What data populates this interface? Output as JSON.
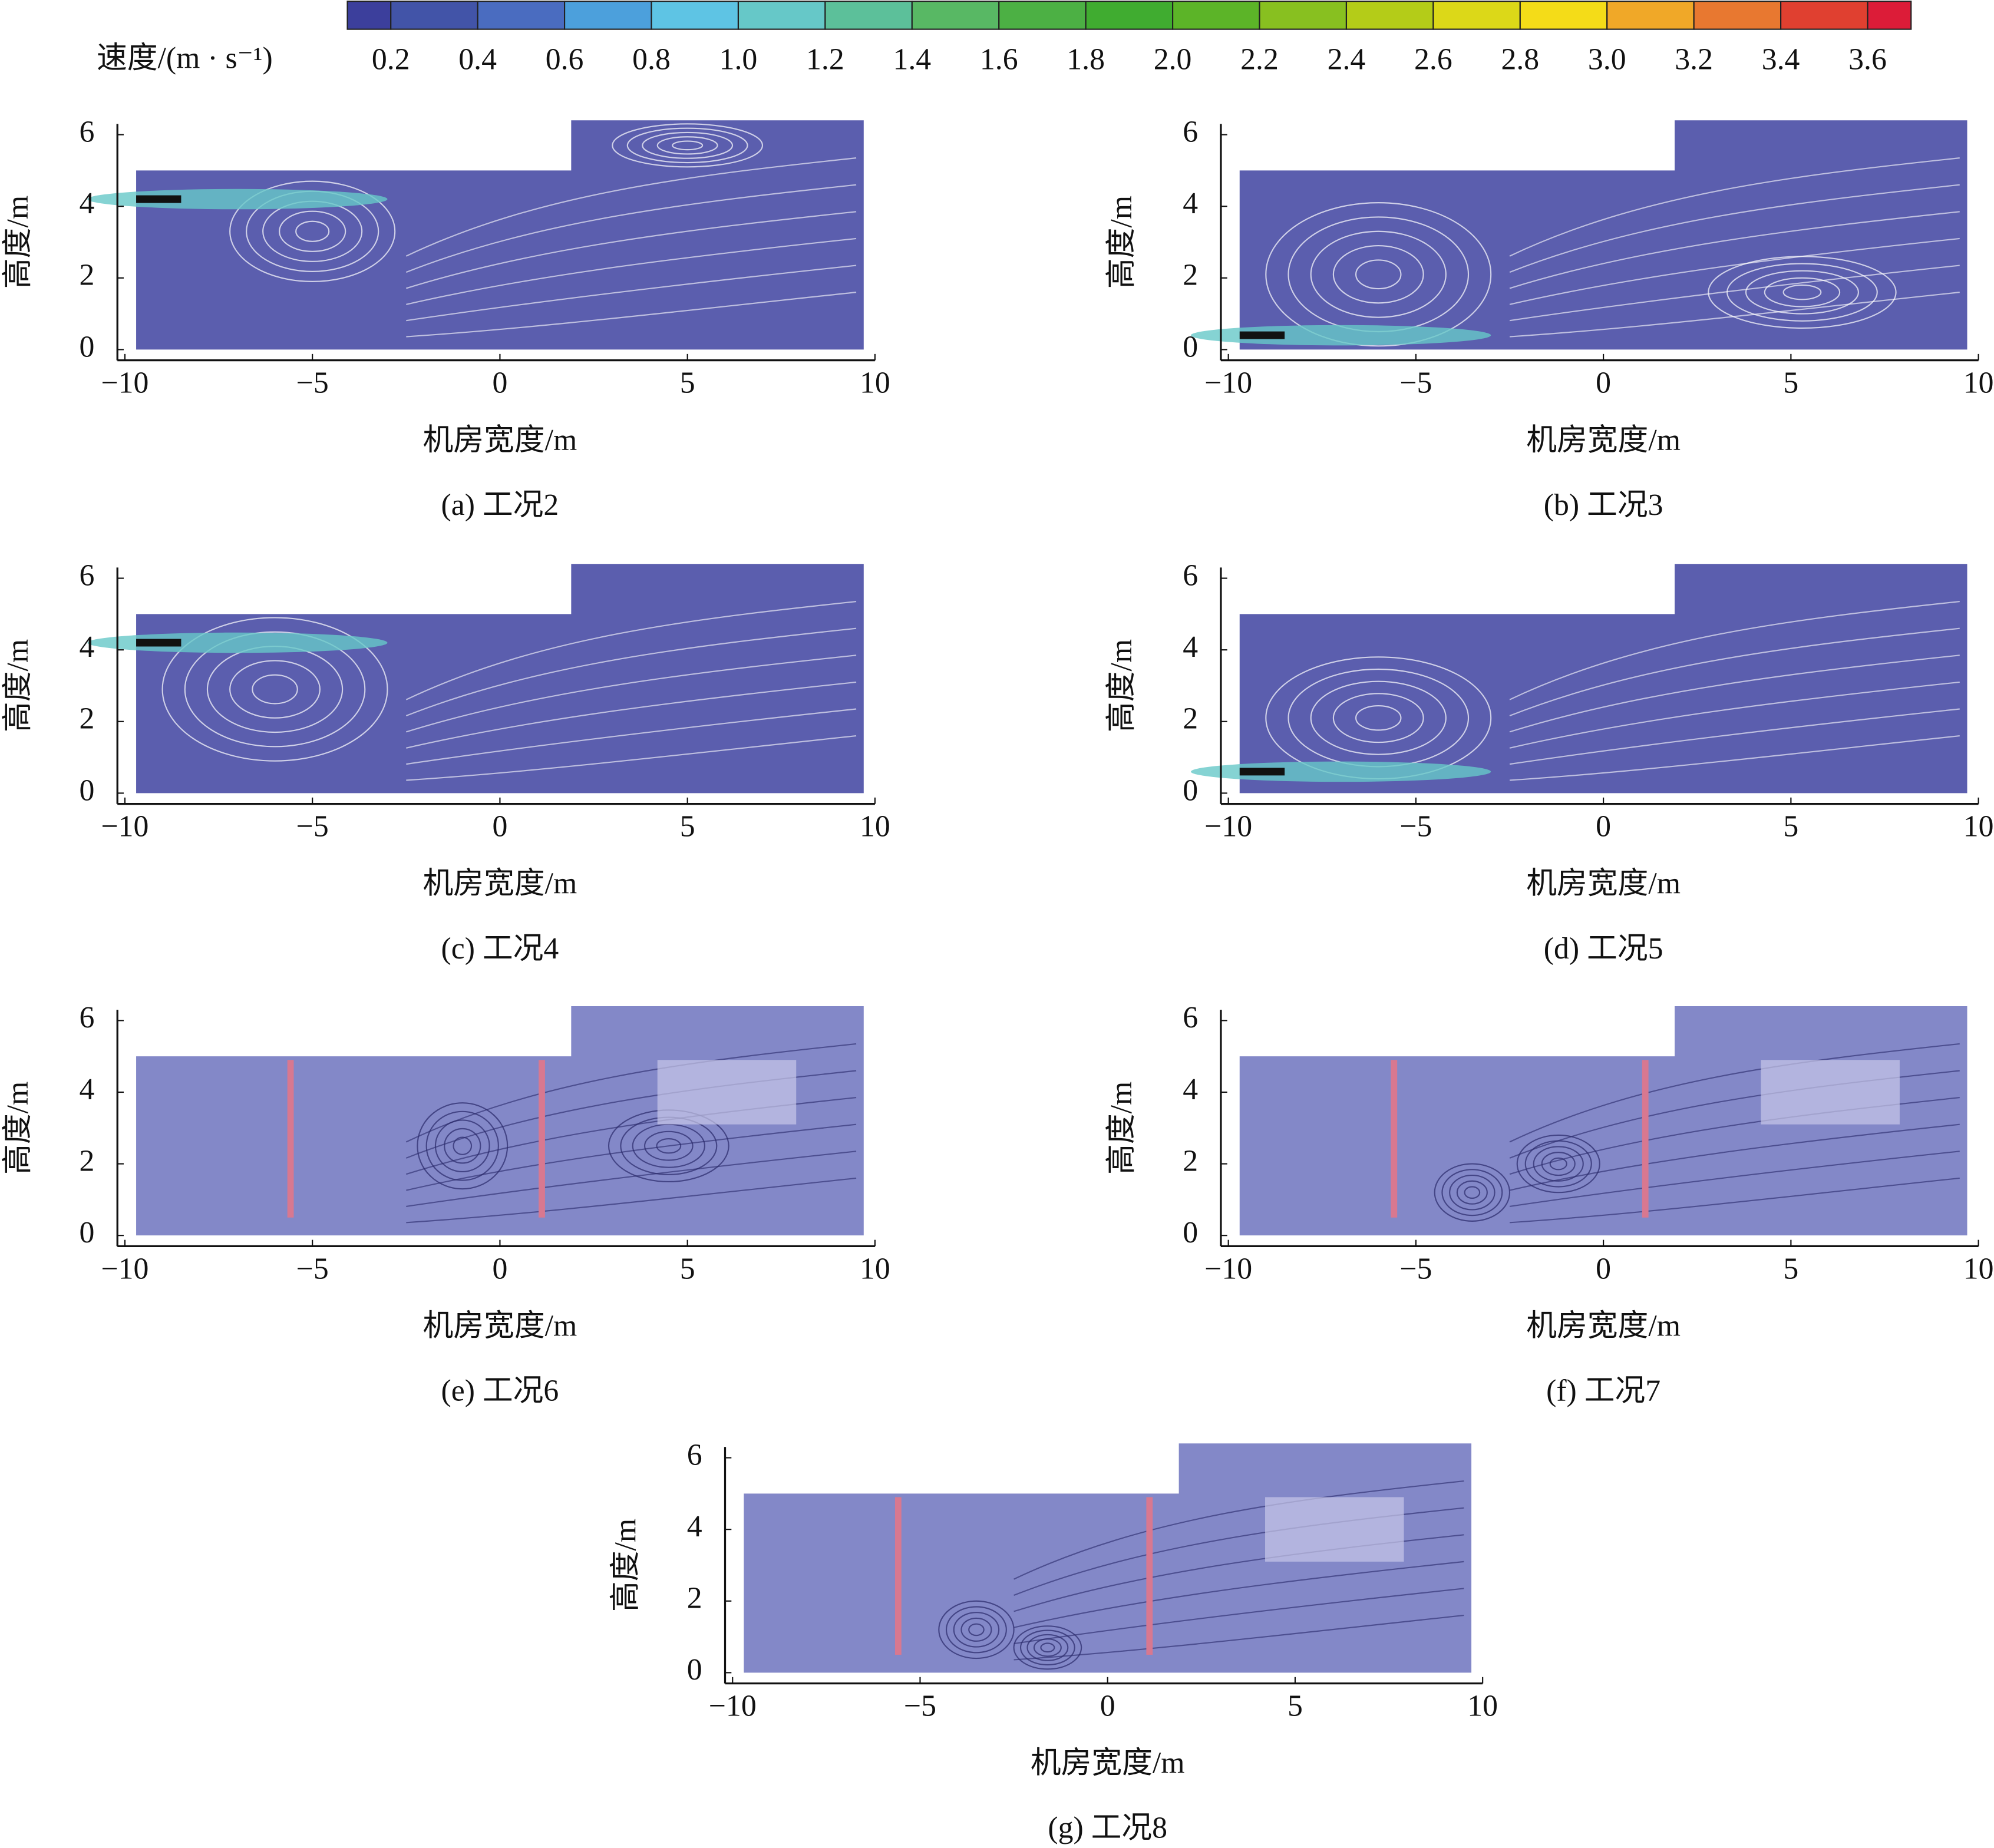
{
  "colorbar": {
    "label": "速度/(m · s⁻¹)",
    "lim": [
      0.1,
      3.7
    ],
    "ticks": [
      0.2,
      0.4,
      0.6,
      0.8,
      {
        "value": 1.0,
        "label": "1.0"
      },
      1.2,
      1.4,
      1.6,
      1.8,
      {
        "value": 2.0,
        "label": "2.0"
      },
      2.2,
      2.4,
      2.6,
      2.8,
      {
        "value": 3.0,
        "label": "3.0"
      },
      3.2,
      3.4,
      3.6
    ],
    "colors": [
      "#3c3f9c",
      "#4254a8",
      "#4a6cc0",
      "#4ca0dc",
      "#5ec4e4",
      "#66c8c8",
      "#5cc09a",
      "#58b864",
      "#4cb044",
      "#40ac30",
      "#5cb428",
      "#88c020",
      "#b4cc18",
      "#dcd818",
      "#f4dc18",
      "#f0a828",
      "#e87830",
      "#e04030",
      "#dc1c38"
    ]
  },
  "chart_data": [
    {
      "type": "streamline",
      "caption": "(a) 工况2",
      "xlabel": "机房宽度/m",
      "ylabel": "高度/m",
      "xlim": [
        -10.2,
        10
      ],
      "ylim": [
        -0.3,
        6.3
      ],
      "xticks": [
        {
          "value": -10,
          "label": "−10"
        },
        {
          "value": -5,
          "label": "−5"
        },
        0,
        5,
        10
      ],
      "yticks": [
        0,
        2,
        4,
        6
      ]
    },
    {
      "type": "streamline",
      "caption": "(b) 工况3",
      "xlabel": "机房宽度/m",
      "ylabel": "高度/m",
      "xlim": [
        -10.2,
        10
      ],
      "ylim": [
        -0.3,
        6.3
      ],
      "xticks": [
        {
          "value": -10,
          "label": "−10"
        },
        {
          "value": -5,
          "label": "−5"
        },
        0,
        5,
        10
      ],
      "yticks": [
        0,
        2,
        4,
        6
      ]
    },
    {
      "type": "streamline",
      "caption": "(c) 工况4",
      "xlabel": "机房宽度/m",
      "ylabel": "高度/m",
      "xlim": [
        -10.2,
        10
      ],
      "ylim": [
        -0.3,
        6.3
      ],
      "xticks": [
        {
          "value": -10,
          "label": "−10"
        },
        {
          "value": -5,
          "label": "−5"
        },
        0,
        5,
        10
      ],
      "yticks": [
        0,
        2,
        4,
        6
      ]
    },
    {
      "type": "streamline",
      "caption": "(d) 工况5",
      "xlabel": "机房宽度/m",
      "ylabel": "高度/m",
      "xlim": [
        -10.2,
        10
      ],
      "ylim": [
        -0.3,
        6.3
      ],
      "xticks": [
        {
          "value": -10,
          "label": "−10"
        },
        {
          "value": -5,
          "label": "−5"
        },
        0,
        5,
        10
      ],
      "yticks": [
        0,
        2,
        4,
        6
      ]
    },
    {
      "type": "streamline",
      "caption": "(e) 工况6",
      "xlabel": "机房宽度/m",
      "ylabel": "高度/m",
      "xlim": [
        -10.2,
        10
      ],
      "ylim": [
        -0.3,
        6.3
      ],
      "xticks": [
        {
          "value": -10,
          "label": "−10"
        },
        {
          "value": -5,
          "label": "−5"
        },
        0,
        5,
        10
      ],
      "yticks": [
        0,
        2,
        4,
        6
      ]
    },
    {
      "type": "streamline",
      "caption": "(f) 工况7",
      "xlabel": "机房宽度/m",
      "ylabel": "高度/m",
      "xlim": [
        -10.2,
        10
      ],
      "ylim": [
        -0.3,
        6.3
      ],
      "xticks": [
        {
          "value": -10,
          "label": "−10"
        },
        {
          "value": -5,
          "label": "−5"
        },
        0,
        5,
        10
      ],
      "yticks": [
        0,
        2,
        4,
        6
      ]
    },
    {
      "type": "streamline",
      "caption": "(g) 工况8",
      "xlabel": "机房宽度/m",
      "ylabel": "高度/m",
      "xlim": [
        -10.2,
        10
      ],
      "ylim": [
        -0.3,
        6.3
      ],
      "xticks": [
        {
          "value": -10,
          "label": "−10"
        },
        {
          "value": -5,
          "label": "−5"
        },
        0,
        5,
        10
      ],
      "yticks": [
        0,
        2,
        4,
        6
      ]
    }
  ]
}
